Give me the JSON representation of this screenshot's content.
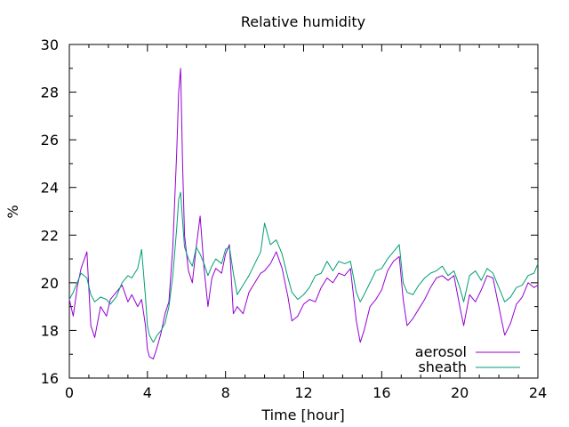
{
  "chart_data": {
    "type": "line",
    "title": "Relative humidity",
    "xlabel": "Time [hour]",
    "ylabel": "%",
    "xlim": [
      0,
      24
    ],
    "ylim": [
      16,
      30
    ],
    "xticks": [
      "0",
      "4",
      "8",
      "12",
      "16",
      "20",
      "24"
    ],
    "yticks": [
      "16",
      "18",
      "20",
      "22",
      "24",
      "26",
      "28",
      "30"
    ],
    "legend_position": "bottom-right",
    "grid": false,
    "series": [
      {
        "name": "aerosol",
        "color": "#9400d3",
        "x": [
          0,
          0.2,
          0.4,
          0.6,
          0.9,
          1.1,
          1.3,
          1.6,
          1.9,
          2.1,
          2.4,
          2.7,
          3.0,
          3.2,
          3.5,
          3.7,
          3.9,
          4.0,
          4.1,
          4.3,
          4.5,
          4.7,
          4.9,
          5.1,
          5.3,
          5.5,
          5.6,
          5.7,
          5.8,
          5.9,
          6.1,
          6.3,
          6.5,
          6.7,
          6.9,
          7.1,
          7.3,
          7.5,
          7.8,
          8.0,
          8.2,
          8.4,
          8.6,
          8.9,
          9.2,
          9.5,
          9.8,
          10.0,
          10.3,
          10.6,
          10.9,
          11.2,
          11.4,
          11.7,
          12.0,
          12.3,
          12.6,
          12.9,
          13.2,
          13.5,
          13.8,
          14.1,
          14.4,
          14.7,
          14.9,
          15.1,
          15.4,
          15.7,
          16.0,
          16.3,
          16.6,
          16.9,
          17.1,
          17.3,
          17.6,
          17.9,
          18.2,
          18.5,
          18.8,
          19.1,
          19.4,
          19.7,
          20.0,
          20.2,
          20.5,
          20.8,
          21.1,
          21.4,
          21.7,
          22.0,
          22.3,
          22.6,
          22.9,
          23.2,
          23.5,
          23.8,
          24.0
        ],
        "y": [
          19.3,
          18.6,
          19.8,
          20.6,
          21.3,
          18.2,
          17.7,
          19.0,
          18.6,
          19.3,
          19.6,
          19.9,
          19.2,
          19.5,
          19.0,
          19.3,
          18.2,
          17.2,
          16.9,
          16.8,
          17.3,
          17.9,
          18.7,
          19.2,
          21.5,
          25.5,
          28.0,
          29.0,
          25.0,
          22.0,
          20.5,
          20.0,
          21.5,
          22.8,
          20.6,
          19.0,
          20.2,
          20.6,
          20.4,
          21.2,
          21.6,
          18.7,
          19.0,
          18.7,
          19.6,
          20.0,
          20.4,
          20.5,
          20.8,
          21.3,
          20.6,
          19.4,
          18.4,
          18.6,
          19.1,
          19.3,
          19.2,
          19.8,
          20.2,
          20.0,
          20.4,
          20.3,
          20.6,
          18.4,
          17.5,
          18.0,
          19.0,
          19.3,
          19.7,
          20.5,
          20.9,
          21.1,
          19.3,
          18.2,
          18.5,
          18.9,
          19.3,
          19.8,
          20.2,
          20.3,
          20.1,
          20.3,
          19.0,
          18.2,
          19.5,
          19.2,
          19.7,
          20.3,
          20.2,
          19.0,
          17.8,
          18.3,
          19.1,
          19.4,
          20.0,
          19.8,
          19.9
        ]
      },
      {
        "name": "sheath",
        "color": "#009e73",
        "x": [
          0,
          0.2,
          0.4,
          0.6,
          0.9,
          1.1,
          1.3,
          1.6,
          1.9,
          2.1,
          2.4,
          2.7,
          3.0,
          3.2,
          3.5,
          3.7,
          3.9,
          4.0,
          4.1,
          4.3,
          4.5,
          4.7,
          4.9,
          5.1,
          5.3,
          5.5,
          5.6,
          5.7,
          5.8,
          5.9,
          6.1,
          6.3,
          6.5,
          6.7,
          6.9,
          7.1,
          7.3,
          7.5,
          7.8,
          8.0,
          8.2,
          8.4,
          8.6,
          8.9,
          9.2,
          9.5,
          9.8,
          10.0,
          10.3,
          10.6,
          10.9,
          11.2,
          11.4,
          11.7,
          12.0,
          12.3,
          12.6,
          12.9,
          13.2,
          13.5,
          13.8,
          14.1,
          14.4,
          14.7,
          14.9,
          15.1,
          15.4,
          15.7,
          16.0,
          16.3,
          16.6,
          16.9,
          17.1,
          17.3,
          17.6,
          17.9,
          18.2,
          18.5,
          18.8,
          19.1,
          19.4,
          19.7,
          20.0,
          20.2,
          20.5,
          20.8,
          21.1,
          21.4,
          21.7,
          22.0,
          22.3,
          22.6,
          22.9,
          23.2,
          23.5,
          23.8,
          24.0
        ],
        "y": [
          19.3,
          19.6,
          20.0,
          20.4,
          20.2,
          19.5,
          19.2,
          19.4,
          19.3,
          19.1,
          19.4,
          20.0,
          20.3,
          20.2,
          20.6,
          21.4,
          19.4,
          18.2,
          17.8,
          17.5,
          17.8,
          18.0,
          18.3,
          19.0,
          20.3,
          22.3,
          23.5,
          23.8,
          22.6,
          21.5,
          21.0,
          20.7,
          21.5,
          21.2,
          20.8,
          20.3,
          20.7,
          21.0,
          20.8,
          21.4,
          21.5,
          20.4,
          19.5,
          19.9,
          20.3,
          20.8,
          21.3,
          22.5,
          21.6,
          21.8,
          21.2,
          20.2,
          19.6,
          19.3,
          19.5,
          19.8,
          20.3,
          20.4,
          20.9,
          20.5,
          20.9,
          20.8,
          20.9,
          19.6,
          19.2,
          19.5,
          20.0,
          20.5,
          20.6,
          21.0,
          21.3,
          21.6,
          20.0,
          19.6,
          19.5,
          19.9,
          20.2,
          20.4,
          20.5,
          20.7,
          20.3,
          20.5,
          19.8,
          19.2,
          20.3,
          20.5,
          20.1,
          20.6,
          20.4,
          19.8,
          19.2,
          19.4,
          19.8,
          19.9,
          20.3,
          20.4,
          20.8
        ]
      }
    ]
  }
}
